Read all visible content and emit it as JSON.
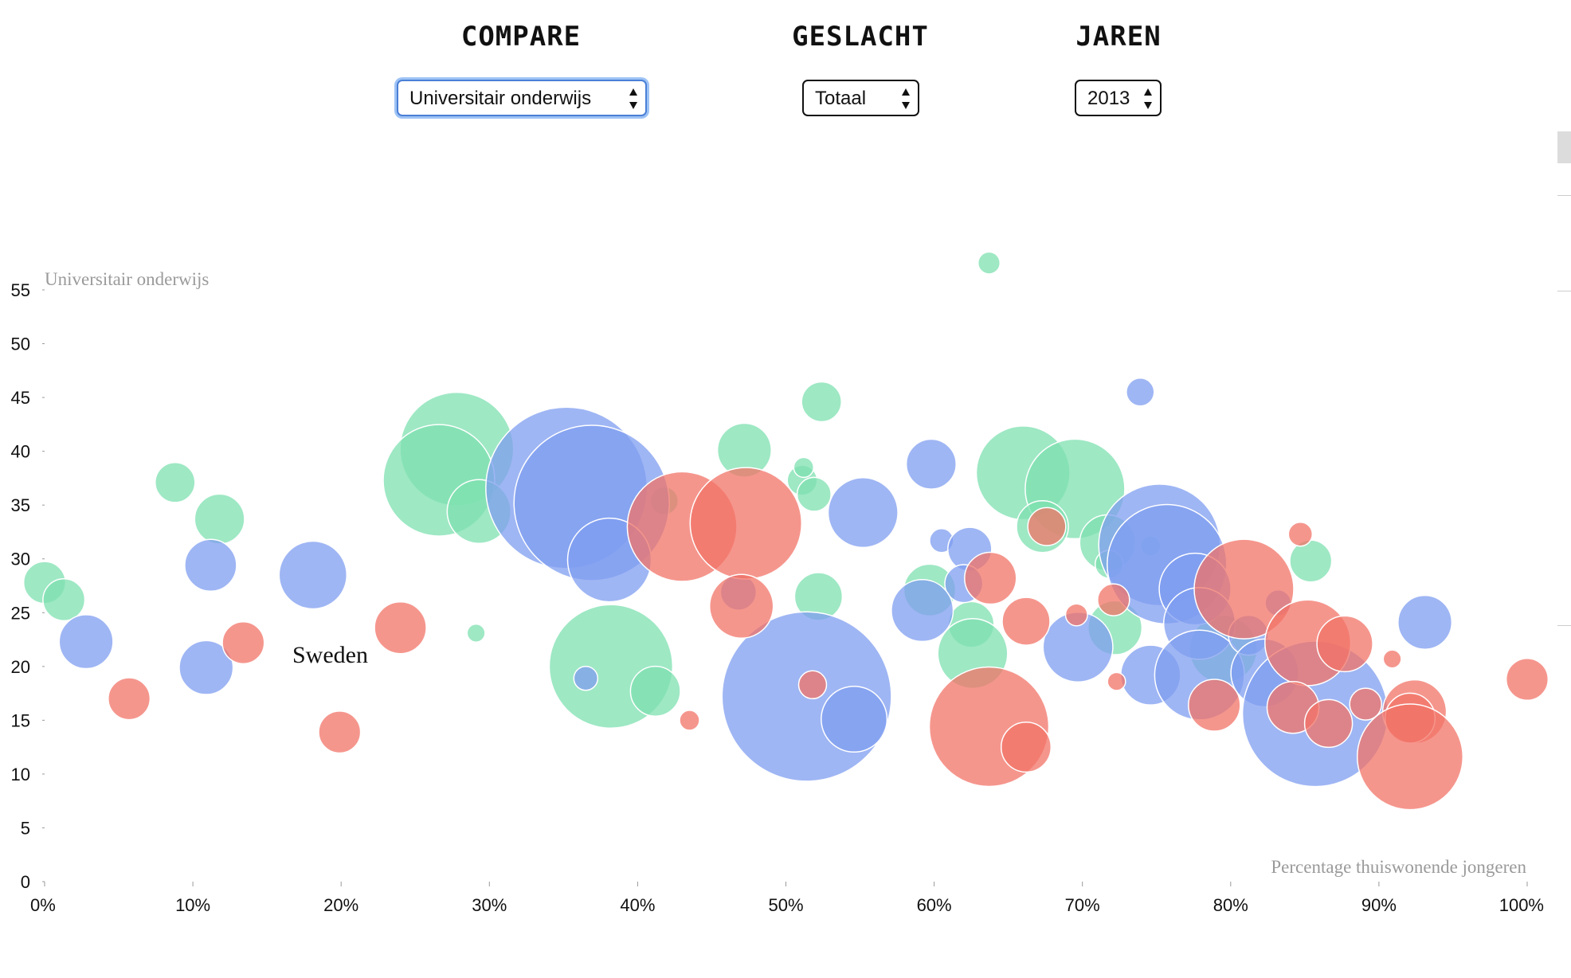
{
  "controls": {
    "compare": {
      "label": "COMPARE",
      "value": "Universitair onderwijs"
    },
    "geslacht": {
      "label": "GESLACHT",
      "value": "Totaal"
    },
    "jaren": {
      "label": "JAREN",
      "value": "2013"
    }
  },
  "hover_label": "Sweden",
  "colors": {
    "green": "#7ee0b0",
    "blue": "#7f9ef0",
    "red": "#f27367"
  },
  "chart_data": {
    "type": "scatter",
    "variant": "bubble",
    "title": "",
    "xlabel": "Percentage thuiswonende jongeren",
    "ylabel": "Universitair onderwijs",
    "xlim": [
      0,
      100
    ],
    "ylim": [
      0,
      55
    ],
    "x_ticks": [
      "0%",
      "10%",
      "20%",
      "30%",
      "40%",
      "50%",
      "60%",
      "70%",
      "80%",
      "90%",
      "100%"
    ],
    "y_ticks": [
      "0",
      "5",
      "10",
      "15",
      "20",
      "25",
      "30",
      "35",
      "40",
      "45",
      "50",
      "55"
    ],
    "grid": false,
    "series": [
      {
        "color": "green",
        "points": [
          {
            "x": 0.0,
            "y": 27.8,
            "r": 2.1
          },
          {
            "x": 1.3,
            "y": 26.2,
            "r": 2.1
          },
          {
            "x": 8.8,
            "y": 37.1,
            "r": 2.0
          },
          {
            "x": 11.8,
            "y": 33.7,
            "r": 2.5
          },
          {
            "x": 27.8,
            "y": 40.2,
            "r": 5.7
          },
          {
            "x": 26.6,
            "y": 37.3,
            "r": 5.6
          },
          {
            "x": 29.3,
            "y": 34.4,
            "r": 3.2
          },
          {
            "x": 29.1,
            "y": 23.1,
            "r": 0.9
          },
          {
            "x": 38.2,
            "y": 20.0,
            "r": 6.2
          },
          {
            "x": 41.2,
            "y": 17.7,
            "r": 2.5
          },
          {
            "x": 41.8,
            "y": 35.4,
            "r": 1.4
          },
          {
            "x": 47.2,
            "y": 40.1,
            "r": 2.7
          },
          {
            "x": 52.4,
            "y": 44.6,
            "r": 2.0
          },
          {
            "x": 51.1,
            "y": 37.3,
            "r": 1.5
          },
          {
            "x": 51.2,
            "y": 38.5,
            "r": 1.0
          },
          {
            "x": 51.9,
            "y": 36.0,
            "r": 1.7
          },
          {
            "x": 52.2,
            "y": 26.5,
            "r": 2.4
          },
          {
            "x": 63.7,
            "y": 57.5,
            "r": 1.1
          },
          {
            "x": 59.7,
            "y": 27.1,
            "r": 2.6
          },
          {
            "x": 62.5,
            "y": 23.9,
            "r": 2.3
          },
          {
            "x": 62.6,
            "y": 21.2,
            "r": 3.5
          },
          {
            "x": 66.0,
            "y": 38.0,
            "r": 4.7
          },
          {
            "x": 69.5,
            "y": 36.5,
            "r": 5.0
          },
          {
            "x": 67.3,
            "y": 33.0,
            "r": 2.6
          },
          {
            "x": 71.7,
            "y": 31.5,
            "r": 2.8
          },
          {
            "x": 71.8,
            "y": 29.5,
            "r": 1.4
          },
          {
            "x": 72.2,
            "y": 23.6,
            "r": 2.7
          },
          {
            "x": 85.4,
            "y": 29.8,
            "r": 2.1
          },
          {
            "x": 79.5,
            "y": 21.6,
            "r": 3.4
          },
          {
            "x": 74.6,
            "y": 31.2,
            "r": 1.0
          }
        ]
      },
      {
        "color": "blue",
        "points": [
          {
            "x": 2.8,
            "y": 22.3,
            "r": 2.7
          },
          {
            "x": 11.2,
            "y": 29.4,
            "r": 2.6
          },
          {
            "x": 10.9,
            "y": 19.9,
            "r": 2.7
          },
          {
            "x": 18.1,
            "y": 28.5,
            "r": 3.4
          },
          {
            "x": 35.2,
            "y": 36.6,
            "r": 8.1
          },
          {
            "x": 36.9,
            "y": 35.2,
            "r": 7.8
          },
          {
            "x": 38.1,
            "y": 29.9,
            "r": 4.2
          },
          {
            "x": 36.5,
            "y": 18.9,
            "r": 1.2
          },
          {
            "x": 46.8,
            "y": 26.9,
            "r": 1.8
          },
          {
            "x": 51.4,
            "y": 17.2,
            "r": 8.5
          },
          {
            "x": 54.6,
            "y": 15.1,
            "r": 3.3
          },
          {
            "x": 55.2,
            "y": 34.3,
            "r": 3.5
          },
          {
            "x": 59.8,
            "y": 38.8,
            "r": 2.5
          },
          {
            "x": 60.5,
            "y": 31.7,
            "r": 1.2
          },
          {
            "x": 62.4,
            "y": 30.9,
            "r": 2.2
          },
          {
            "x": 62.0,
            "y": 27.7,
            "r": 1.9
          },
          {
            "x": 59.2,
            "y": 25.2,
            "r": 3.1
          },
          {
            "x": 69.7,
            "y": 21.8,
            "r": 3.5
          },
          {
            "x": 73.9,
            "y": 45.5,
            "r": 1.4
          },
          {
            "x": 75.2,
            "y": 31.3,
            "r": 6.1
          },
          {
            "x": 75.7,
            "y": 29.5,
            "r": 6.0
          },
          {
            "x": 77.6,
            "y": 27.2,
            "r": 3.6
          },
          {
            "x": 77.9,
            "y": 24.0,
            "r": 3.6
          },
          {
            "x": 74.6,
            "y": 19.2,
            "r": 3.0
          },
          {
            "x": 77.9,
            "y": 19.2,
            "r": 4.5
          },
          {
            "x": 81.2,
            "y": 22.9,
            "r": 2.0
          },
          {
            "x": 82.3,
            "y": 19.4,
            "r": 3.4
          },
          {
            "x": 85.7,
            "y": 15.6,
            "r": 7.3
          },
          {
            "x": 83.2,
            "y": 25.9,
            "r": 1.3
          },
          {
            "x": 93.1,
            "y": 24.1,
            "r": 2.7
          }
        ]
      },
      {
        "color": "red",
        "points": [
          {
            "x": 5.7,
            "y": 17.0,
            "r": 2.1
          },
          {
            "x": 13.4,
            "y": 22.2,
            "r": 2.1
          },
          {
            "x": 19.9,
            "y": 13.9,
            "r": 2.1
          },
          {
            "x": 24.0,
            "y": 23.6,
            "r": 2.6
          },
          {
            "x": 43.0,
            "y": 33.0,
            "r": 5.5
          },
          {
            "x": 47.3,
            "y": 33.3,
            "r": 5.6
          },
          {
            "x": 47.0,
            "y": 25.6,
            "r": 3.2
          },
          {
            "x": 43.5,
            "y": 15.0,
            "r": 1.0
          },
          {
            "x": 51.8,
            "y": 18.3,
            "r": 1.4
          },
          {
            "x": 63.7,
            "y": 14.4,
            "r": 6.0
          },
          {
            "x": 66.2,
            "y": 12.5,
            "r": 2.5
          },
          {
            "x": 63.8,
            "y": 28.2,
            "r": 2.6
          },
          {
            "x": 66.2,
            "y": 24.2,
            "r": 2.4
          },
          {
            "x": 67.6,
            "y": 33.0,
            "r": 1.9
          },
          {
            "x": 69.6,
            "y": 24.8,
            "r": 1.1
          },
          {
            "x": 72.1,
            "y": 26.2,
            "r": 1.6
          },
          {
            "x": 72.3,
            "y": 18.6,
            "r": 0.9
          },
          {
            "x": 80.9,
            "y": 27.2,
            "r": 5.0
          },
          {
            "x": 84.7,
            "y": 32.3,
            "r": 1.2
          },
          {
            "x": 85.2,
            "y": 22.2,
            "r": 4.3
          },
          {
            "x": 87.7,
            "y": 22.1,
            "r": 2.8
          },
          {
            "x": 78.9,
            "y": 16.4,
            "r": 2.6
          },
          {
            "x": 84.2,
            "y": 16.2,
            "r": 2.6
          },
          {
            "x": 86.6,
            "y": 14.7,
            "r": 2.4
          },
          {
            "x": 89.1,
            "y": 16.5,
            "r": 1.6
          },
          {
            "x": 90.9,
            "y": 20.7,
            "r": 0.9
          },
          {
            "x": 92.4,
            "y": 15.8,
            "r": 3.2
          },
          {
            "x": 92.1,
            "y": 15.2,
            "r": 2.5
          },
          {
            "x": 92.1,
            "y": 11.6,
            "r": 5.3
          },
          {
            "x": 100.0,
            "y": 18.8,
            "r": 2.1
          }
        ]
      }
    ]
  }
}
